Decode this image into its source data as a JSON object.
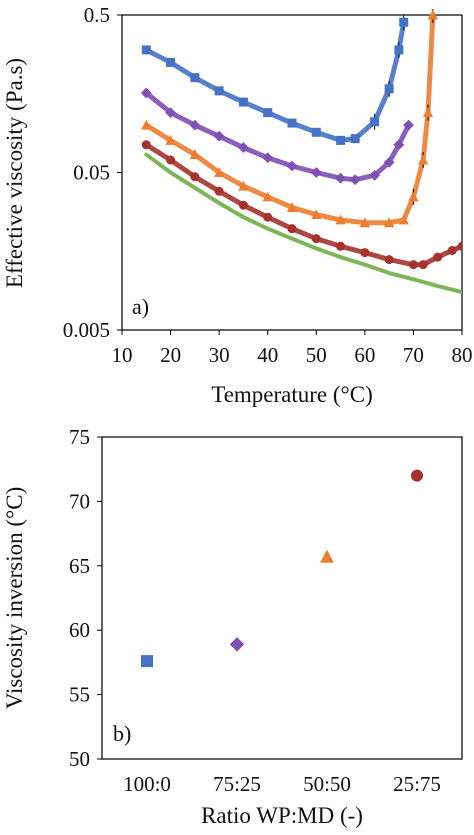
{
  "chart_data": [
    {
      "id": "a",
      "type": "scatter",
      "panel_label": "a)",
      "xlabel": "Temperature (°C)",
      "ylabel": "Effective viscosity (Pa.s)",
      "xlim": [
        10,
        80
      ],
      "ylim": [
        0.005,
        0.5
      ],
      "yscale": "log",
      "xticks": [
        10,
        20,
        30,
        40,
        50,
        60,
        70,
        80
      ],
      "xtick_labels": [
        "10",
        "20",
        "30",
        "40",
        "50",
        "60",
        "70",
        "80"
      ],
      "yticks": [
        0.005,
        0.05,
        0.5
      ],
      "ytick_labels": [
        "0.005",
        "0.05",
        "0.5"
      ],
      "grid": false,
      "series": [
        {
          "color": "#4472C4",
          "marker": "square",
          "error_bars": true,
          "x": [
            15,
            20,
            25,
            30,
            35,
            40,
            45,
            50,
            55,
            58,
            62,
            65,
            67,
            68
          ],
          "y": [
            0.3,
            0.25,
            0.2,
            0.165,
            0.14,
            0.12,
            0.103,
            0.09,
            0.08,
            0.082,
            0.105,
            0.17,
            0.3,
            0.45
          ]
        },
        {
          "color": "#7F4FB3",
          "marker": "diamond",
          "error_bars": false,
          "x": [
            15,
            20,
            25,
            30,
            35,
            40,
            45,
            50,
            55,
            58,
            62,
            65,
            67,
            69
          ],
          "y": [
            0.16,
            0.12,
            0.1,
            0.085,
            0.072,
            0.062,
            0.055,
            0.05,
            0.046,
            0.045,
            0.048,
            0.058,
            0.075,
            0.1
          ]
        },
        {
          "color": "#ED7D31",
          "marker": "triangle",
          "error_bars": true,
          "x": [
            15,
            20,
            25,
            30,
            35,
            40,
            45,
            50,
            55,
            60,
            65,
            68,
            70,
            72,
            73,
            74
          ],
          "y": [
            0.1,
            0.08,
            0.065,
            0.05,
            0.041,
            0.035,
            0.03,
            0.027,
            0.025,
            0.024,
            0.024,
            0.025,
            0.035,
            0.06,
            0.12,
            0.5
          ]
        },
        {
          "color": "#A5322D",
          "marker": "circle",
          "error_bars": false,
          "x": [
            15,
            20,
            25,
            30,
            35,
            40,
            45,
            50,
            55,
            60,
            65,
            70,
            72,
            75,
            78,
            80
          ],
          "y": [
            0.075,
            0.06,
            0.047,
            0.038,
            0.031,
            0.026,
            0.022,
            0.019,
            0.017,
            0.0155,
            0.014,
            0.013,
            0.013,
            0.0145,
            0.016,
            0.017
          ]
        },
        {
          "color": "#70AD47",
          "marker": "line",
          "error_bars": false,
          "x": [
            15,
            20,
            25,
            30,
            35,
            40,
            45,
            50,
            55,
            60,
            65,
            70,
            75,
            80
          ],
          "y": [
            0.065,
            0.05,
            0.04,
            0.032,
            0.026,
            0.022,
            0.019,
            0.0165,
            0.0145,
            0.013,
            0.0115,
            0.0105,
            0.0095,
            0.0087
          ]
        }
      ]
    },
    {
      "id": "b",
      "type": "scatter",
      "panel_label": "b)",
      "xlabel": "Ratio WP:MD (-)",
      "ylabel": "Viscosity inversion (°C)",
      "categories": [
        "100:0",
        "75:25",
        "50:50",
        "25:75"
      ],
      "ylim": [
        50,
        75
      ],
      "yticks": [
        50,
        55,
        60,
        65,
        70,
        75
      ],
      "ytick_labels": [
        "50",
        "55",
        "60",
        "65",
        "70",
        "75"
      ],
      "grid": false,
      "points": [
        {
          "category": "100:0",
          "value": 57.6,
          "marker": "square",
          "color": "#4472C4"
        },
        {
          "category": "75:25",
          "value": 58.9,
          "marker": "diamond",
          "color": "#7F4FB3"
        },
        {
          "category": "50:50",
          "value": 65.7,
          "marker": "triangle",
          "color": "#ED7D31"
        },
        {
          "category": "25:75",
          "value": 72.0,
          "marker": "circle",
          "color": "#A5322D"
        }
      ]
    }
  ]
}
